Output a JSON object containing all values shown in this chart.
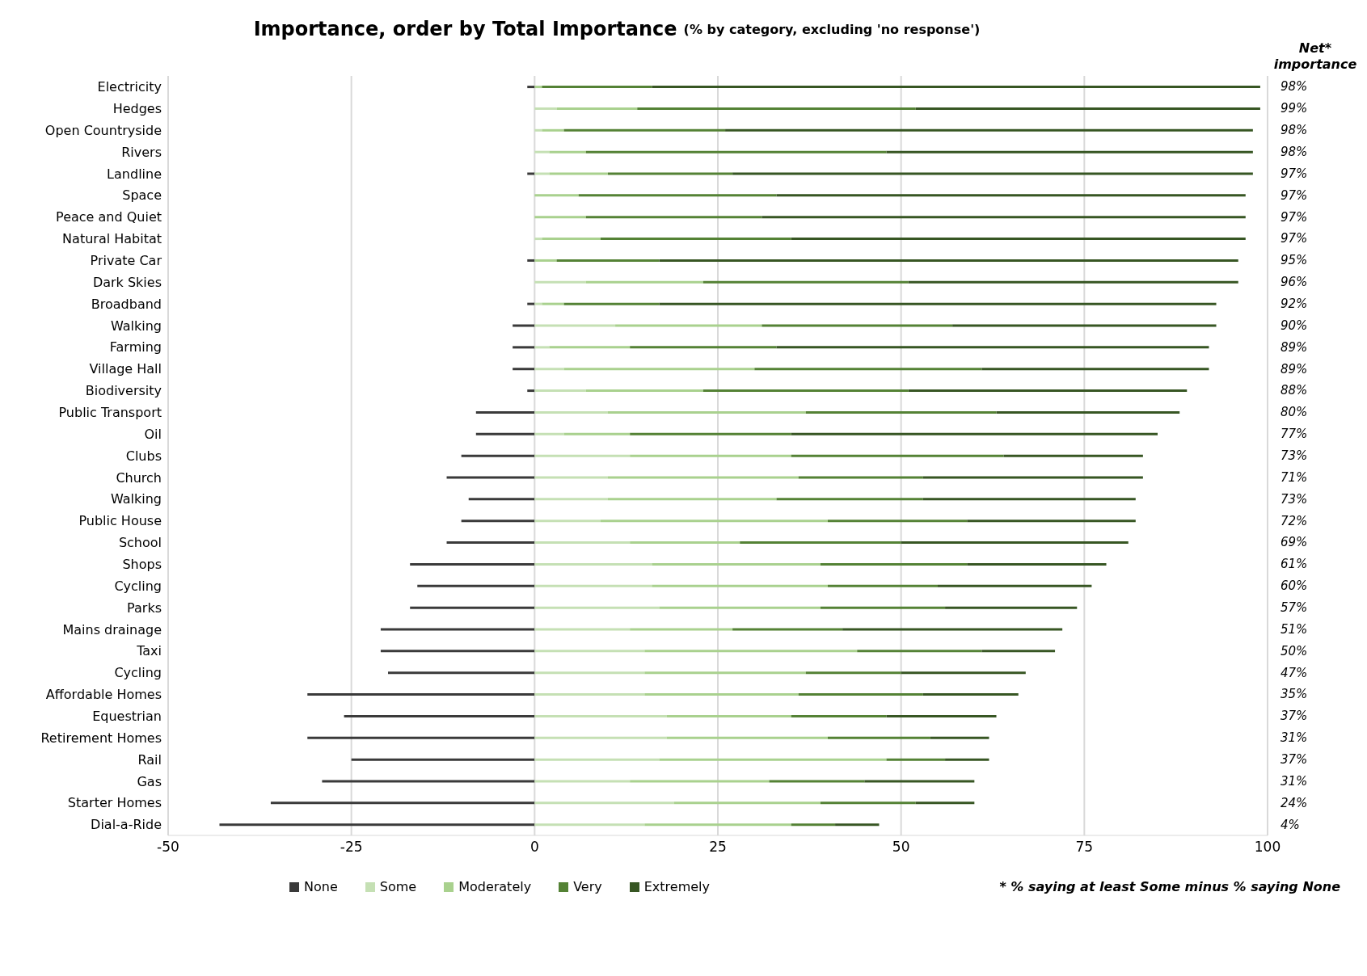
{
  "chart_data": {
    "type": "bar",
    "orientation": "horizontal",
    "stacked": true,
    "title": "Importance, order by Total Importance",
    "subtitle": "(% by category, excluding 'no response')",
    "categories": [
      "Electricity",
      "Hedges",
      "Open Countryside",
      "Rivers",
      "Landline",
      "Space",
      "Peace and Quiet",
      "Natural Habitat",
      "Private Car",
      "Dark Skies",
      "Broadband",
      "Walking",
      "Farming",
      "Village Hall",
      "Biodiversity",
      "Public Transport",
      "Oil",
      "Clubs",
      "Church",
      "Walking",
      "Public House",
      "School",
      "Shops",
      "Cycling",
      "Parks",
      "Mains drainage",
      "Taxi",
      "Cycling",
      "Affordable Homes",
      "Equestrian",
      "Retirement Homes",
      "Rail",
      "Gas",
      "Starter Homes",
      "Dial-a-Ride"
    ],
    "series": [
      {
        "name": "None",
        "color": "#3a3a3a",
        "values": [
          -1,
          0,
          0,
          0,
          -1,
          0,
          0,
          0,
          -1,
          0,
          -1,
          -3,
          -3,
          -3,
          -1,
          -8,
          -8,
          -10,
          -12,
          -9,
          -10,
          -12,
          -17,
          -16,
          -17,
          -21,
          -21,
          -20,
          -31,
          -26,
          -31,
          -25,
          -29,
          -36,
          -43
        ]
      },
      {
        "name": "Some",
        "color": "#c5e0b4",
        "values": [
          0,
          3,
          1,
          2,
          2,
          0,
          0,
          1,
          0,
          7,
          1,
          11,
          2,
          4,
          7,
          10,
          4,
          13,
          10,
          10,
          9,
          13,
          16,
          16,
          17,
          13,
          15,
          15,
          15,
          18,
          18,
          17,
          13,
          19,
          15
        ]
      },
      {
        "name": "Moderately",
        "color": "#a9d18e",
        "values": [
          1,
          11,
          3,
          5,
          8,
          6,
          7,
          8,
          3,
          16,
          3,
          20,
          11,
          26,
          16,
          27,
          9,
          22,
          26,
          23,
          31,
          15,
          23,
          24,
          22,
          14,
          29,
          22,
          21,
          17,
          22,
          31,
          19,
          20,
          20
        ]
      },
      {
        "name": "Very",
        "color": "#548235",
        "values": [
          15,
          38,
          22,
          41,
          17,
          27,
          24,
          26,
          14,
          28,
          13,
          26,
          20,
          31,
          28,
          26,
          22,
          29,
          17,
          20,
          19,
          22,
          20,
          15,
          17,
          15,
          17,
          13,
          17,
          13,
          14,
          8,
          13,
          13,
          6
        ]
      },
      {
        "name": "Extremely",
        "color": "#375623",
        "values": [
          83,
          47,
          72,
          50,
          71,
          64,
          66,
          62,
          79,
          45,
          76,
          36,
          59,
          31,
          38,
          25,
          50,
          19,
          30,
          29,
          23,
          31,
          19,
          21,
          18,
          30,
          10,
          17,
          13,
          15,
          8,
          6,
          15,
          8,
          6
        ]
      }
    ],
    "xlim": [
      -50,
      100
    ],
    "xticks": [
      -50,
      -25,
      0,
      25,
      50,
      75,
      100
    ],
    "grid": "x",
    "legend": "bottom",
    "annotations": [
      "Net* importance",
      "98%",
      "99%",
      "98%",
      "98%",
      "97%",
      "97%",
      "97%",
      "97%",
      "95%",
      "96%",
      "92%",
      "90%",
      "89%",
      "89%",
      "88%",
      "80%",
      "77%",
      "73%",
      "71%",
      "73%",
      "72%",
      "69%",
      "61%",
      "60%",
      "57%",
      "51%",
      "50%",
      "47%",
      "35%",
      "37%",
      "31%",
      "37%",
      "31%",
      "24%",
      "4%",
      "* % saying at least Some minus % saying None"
    ]
  }
}
